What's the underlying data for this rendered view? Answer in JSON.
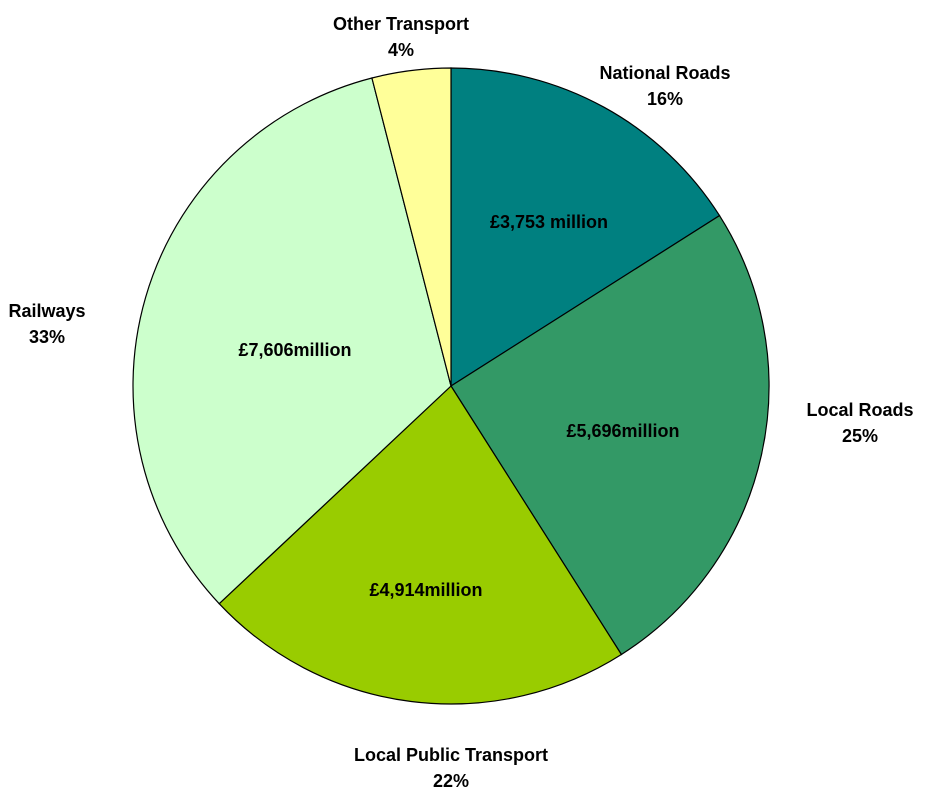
{
  "chart_data": {
    "type": "pie",
    "categories": [
      "National Roads",
      "Local Roads",
      "Local Public Transport",
      "Railways",
      "Other Transport"
    ],
    "values": [
      16,
      25,
      22,
      33,
      4
    ],
    "value_labels": [
      "16%",
      "25%",
      "22%",
      "33%",
      "4%"
    ],
    "amount_labels": [
      "£3,753 million",
      "£5,696million",
      "£4,914million",
      "£7,606million",
      null
    ],
    "colors": [
      "#008080",
      "#339966",
      "#99cc00",
      "#ccffcc",
      "#ffff99"
    ]
  }
}
